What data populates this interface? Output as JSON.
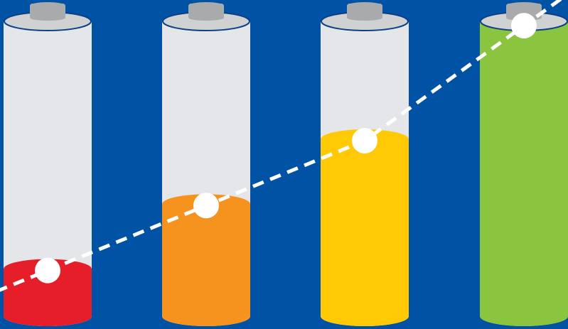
{
  "background_color": "#0053a4",
  "battery_body_color": "#e5e6e9",
  "battery_rim_color": "#0d3f86",
  "battery_cap_color": "#a9aaac",
  "battery_cap_top_color": "#d0d1d3",
  "trend_line_color": "#ffffff",
  "batteries": [
    {
      "charge_level": 0.16,
      "fill_color": "#e61e2a"
    },
    {
      "charge_level": 0.38,
      "fill_color": "#f6921e"
    },
    {
      "charge_level": 0.6,
      "fill_color": "#ffca05"
    },
    {
      "charge_level": 0.99,
      "fill_color": "#8bc43f"
    }
  ]
}
